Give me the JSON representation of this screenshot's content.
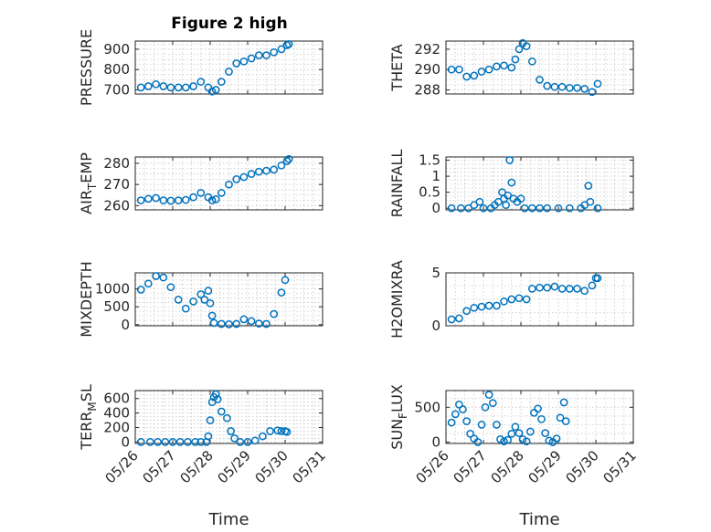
{
  "figure": {
    "title": "Figure 2 high"
  },
  "colors": {
    "marker": "#0072bd",
    "axis": "#262626",
    "grid": "#c6c6c6"
  },
  "chart_data": [
    {
      "id": "pressure",
      "type": "scatter",
      "ylabel": "PRESSURE",
      "xlim": [
        0,
        5
      ],
      "ylim": [
        680,
        940
      ],
      "yticks": [
        700,
        800,
        900
      ],
      "ytick_labels": [
        "700",
        "800",
        "900"
      ],
      "x_tick_dates": [
        "05/26",
        "05/27",
        "05/28",
        "05/29",
        "05/30",
        "05/31"
      ],
      "x_tick_labels_visible": false,
      "xlabel": "",
      "grid": true,
      "points": [
        [
          0.15,
          712
        ],
        [
          0.35,
          718
        ],
        [
          0.55,
          728
        ],
        [
          0.75,
          718
        ],
        [
          0.95,
          712
        ],
        [
          1.15,
          712
        ],
        [
          1.35,
          712
        ],
        [
          1.55,
          718
        ],
        [
          1.75,
          740
        ],
        [
          1.95,
          712
        ],
        [
          2.05,
          692
        ],
        [
          2.15,
          700
        ],
        [
          2.3,
          740
        ],
        [
          2.5,
          790
        ],
        [
          2.7,
          830
        ],
        [
          2.9,
          840
        ],
        [
          3.1,
          855
        ],
        [
          3.3,
          870
        ],
        [
          3.5,
          870
        ],
        [
          3.7,
          885
        ],
        [
          3.9,
          900
        ],
        [
          4.05,
          920
        ],
        [
          4.1,
          925
        ]
      ]
    },
    {
      "id": "theta",
      "type": "scatter",
      "ylabel": "THETA",
      "xlim": [
        0,
        5
      ],
      "ylim": [
        287.6,
        292.8
      ],
      "yticks": [
        288,
        290,
        292
      ],
      "ytick_labels": [
        "288",
        "290",
        "292"
      ],
      "x_tick_dates": [
        "05/26",
        "05/27",
        "05/28",
        "05/29",
        "05/30",
        "05/31"
      ],
      "x_tick_labels_visible": false,
      "xlabel": "",
      "grid": true,
      "points": [
        [
          0.15,
          290
        ],
        [
          0.35,
          290
        ],
        [
          0.55,
          289.3
        ],
        [
          0.75,
          289.4
        ],
        [
          0.95,
          289.8
        ],
        [
          1.15,
          290
        ],
        [
          1.35,
          290.3
        ],
        [
          1.55,
          290.4
        ],
        [
          1.75,
          290.2
        ],
        [
          1.85,
          291
        ],
        [
          1.95,
          292
        ],
        [
          2.05,
          292.6
        ],
        [
          2.15,
          292.3
        ],
        [
          2.3,
          290.8
        ],
        [
          2.5,
          289
        ],
        [
          2.7,
          288.4
        ],
        [
          2.9,
          288.3
        ],
        [
          3.1,
          288.3
        ],
        [
          3.3,
          288.2
        ],
        [
          3.5,
          288.2
        ],
        [
          3.7,
          288.1
        ],
        [
          3.9,
          287.8
        ],
        [
          4.05,
          288.6
        ]
      ]
    },
    {
      "id": "air_temp",
      "type": "scatter",
      "ylabel": "AIR_TEMP",
      "xlim": [
        0,
        5
      ],
      "ylim": [
        258,
        283
      ],
      "yticks": [
        260,
        270,
        280
      ],
      "ytick_labels": [
        "260",
        "270",
        "280"
      ],
      "x_tick_dates": [
        "05/26",
        "05/27",
        "05/28",
        "05/29",
        "05/30",
        "05/31"
      ],
      "x_tick_labels_visible": false,
      "xlabel": "",
      "grid": true,
      "points": [
        [
          0.15,
          262.5
        ],
        [
          0.35,
          263.2
        ],
        [
          0.55,
          263.6
        ],
        [
          0.75,
          262.5
        ],
        [
          0.95,
          262.3
        ],
        [
          1.15,
          262.5
        ],
        [
          1.35,
          262.7
        ],
        [
          1.55,
          264
        ],
        [
          1.75,
          266
        ],
        [
          1.95,
          264
        ],
        [
          2.05,
          262.5
        ],
        [
          2.15,
          263
        ],
        [
          2.3,
          266
        ],
        [
          2.5,
          270
        ],
        [
          2.7,
          272.5
        ],
        [
          2.9,
          273.5
        ],
        [
          3.1,
          275
        ],
        [
          3.3,
          276
        ],
        [
          3.5,
          276.5
        ],
        [
          3.7,
          277
        ],
        [
          3.9,
          279
        ],
        [
          4.05,
          281
        ],
        [
          4.1,
          282
        ]
      ]
    },
    {
      "id": "rainfall",
      "type": "scatter",
      "ylabel": "RAINFALL",
      "xlim": [
        0,
        5
      ],
      "ylim": [
        -0.05,
        1.6
      ],
      "yticks": [
        0,
        0.5,
        1,
        1.5
      ],
      "ytick_labels": [
        "0",
        "0.5",
        "1",
        "1.5"
      ],
      "x_tick_dates": [
        "05/26",
        "05/27",
        "05/28",
        "05/29",
        "05/30",
        "05/31"
      ],
      "x_tick_labels_visible": false,
      "xlabel": "",
      "grid": true,
      "points": [
        [
          0.15,
          0
        ],
        [
          0.4,
          0
        ],
        [
          0.6,
          0
        ],
        [
          0.75,
          0.1
        ],
        [
          0.9,
          0.2
        ],
        [
          1.0,
          0
        ],
        [
          1.2,
          0
        ],
        [
          1.3,
          0.1
        ],
        [
          1.4,
          0.2
        ],
        [
          1.5,
          0.5
        ],
        [
          1.55,
          0.3
        ],
        [
          1.6,
          0.1
        ],
        [
          1.65,
          0.4
        ],
        [
          1.7,
          1.5
        ],
        [
          1.75,
          0.8
        ],
        [
          1.8,
          0.3
        ],
        [
          1.9,
          0.2
        ],
        [
          2.0,
          0.3
        ],
        [
          2.1,
          0
        ],
        [
          2.3,
          0
        ],
        [
          2.5,
          0
        ],
        [
          2.7,
          0
        ],
        [
          3.0,
          0
        ],
        [
          3.3,
          0
        ],
        [
          3.6,
          0
        ],
        [
          3.7,
          0.1
        ],
        [
          3.8,
          0.7
        ],
        [
          3.85,
          0.2
        ],
        [
          4.05,
          0
        ]
      ]
    },
    {
      "id": "mixdepth",
      "type": "scatter",
      "ylabel": "MIXDEPTH",
      "xlim": [
        0,
        5
      ],
      "ylim": [
        -30,
        1450
      ],
      "yticks": [
        0,
        500,
        1000
      ],
      "ytick_labels": [
        "0",
        "500",
        "1000"
      ],
      "x_tick_dates": [
        "05/26",
        "05/27",
        "05/28",
        "05/29",
        "05/30",
        "05/31"
      ],
      "x_tick_labels_visible": false,
      "xlabel": "",
      "grid": true,
      "points": [
        [
          0.15,
          980
        ],
        [
          0.35,
          1150
        ],
        [
          0.55,
          1360
        ],
        [
          0.75,
          1320
        ],
        [
          0.95,
          1050
        ],
        [
          1.15,
          700
        ],
        [
          1.35,
          450
        ],
        [
          1.55,
          650
        ],
        [
          1.75,
          850
        ],
        [
          1.85,
          700
        ],
        [
          1.95,
          950
        ],
        [
          2.0,
          600
        ],
        [
          2.05,
          250
        ],
        [
          2.1,
          50
        ],
        [
          2.3,
          20
        ],
        [
          2.5,
          10
        ],
        [
          2.7,
          20
        ],
        [
          2.9,
          150
        ],
        [
          3.1,
          100
        ],
        [
          3.3,
          30
        ],
        [
          3.5,
          20
        ],
        [
          3.7,
          300
        ],
        [
          3.9,
          900
        ],
        [
          4.0,
          1250
        ]
      ]
    },
    {
      "id": "h2omixra",
      "type": "scatter",
      "ylabel": "H2OMIXRA",
      "xlim": [
        0,
        5
      ],
      "ylim": [
        0,
        5
      ],
      "yticks": [
        0,
        5
      ],
      "ytick_labels": [
        "0",
        "5"
      ],
      "x_tick_dates": [
        "05/26",
        "05/27",
        "05/28",
        "05/29",
        "05/30",
        "05/31"
      ],
      "x_tick_labels_visible": false,
      "xlabel": "",
      "grid": true,
      "points": [
        [
          0.15,
          0.6
        ],
        [
          0.35,
          0.7
        ],
        [
          0.55,
          1.4
        ],
        [
          0.75,
          1.7
        ],
        [
          0.95,
          1.8
        ],
        [
          1.15,
          1.9
        ],
        [
          1.35,
          1.9
        ],
        [
          1.55,
          2.3
        ],
        [
          1.75,
          2.5
        ],
        [
          1.95,
          2.6
        ],
        [
          2.15,
          2.5
        ],
        [
          2.3,
          3.5
        ],
        [
          2.5,
          3.6
        ],
        [
          2.7,
          3.6
        ],
        [
          2.9,
          3.7
        ],
        [
          3.1,
          3.5
        ],
        [
          3.3,
          3.5
        ],
        [
          3.5,
          3.5
        ],
        [
          3.7,
          3.3
        ],
        [
          3.9,
          3.8
        ],
        [
          4.0,
          4.5
        ],
        [
          4.05,
          4.5
        ]
      ]
    },
    {
      "id": "terr_msl",
      "type": "scatter",
      "ylabel": "TERR_MSL",
      "xlim": [
        0,
        5
      ],
      "ylim": [
        -20,
        710
      ],
      "yticks": [
        0,
        200,
        400,
        600
      ],
      "ytick_labels": [
        "0",
        "200",
        "400",
        "600"
      ],
      "x_tick_dates": [
        "05/26",
        "05/27",
        "05/28",
        "05/29",
        "05/30",
        "05/31"
      ],
      "x_tick_labels_visible": true,
      "xlabel": "Time",
      "grid": true,
      "points": [
        [
          0.15,
          0
        ],
        [
          0.4,
          0
        ],
        [
          0.6,
          0
        ],
        [
          0.8,
          0
        ],
        [
          1.0,
          0
        ],
        [
          1.2,
          0
        ],
        [
          1.4,
          0
        ],
        [
          1.6,
          0
        ],
        [
          1.75,
          0
        ],
        [
          1.9,
          0
        ],
        [
          1.95,
          80
        ],
        [
          2.0,
          300
        ],
        [
          2.05,
          550
        ],
        [
          2.1,
          620
        ],
        [
          2.15,
          660
        ],
        [
          2.2,
          590
        ],
        [
          2.3,
          420
        ],
        [
          2.45,
          330
        ],
        [
          2.55,
          150
        ],
        [
          2.65,
          50
        ],
        [
          2.8,
          0
        ],
        [
          3.0,
          0
        ],
        [
          3.2,
          20
        ],
        [
          3.4,
          80
        ],
        [
          3.6,
          150
        ],
        [
          3.8,
          160
        ],
        [
          3.9,
          150
        ],
        [
          4.0,
          150
        ],
        [
          4.05,
          140
        ]
      ]
    },
    {
      "id": "sun_flux",
      "type": "scatter",
      "ylabel": "SUN_FLUX",
      "xlim": [
        0,
        5
      ],
      "ylim": [
        -20,
        740
      ],
      "yticks": [
        0,
        500
      ],
      "ytick_labels": [
        "0",
        "500"
      ],
      "x_tick_dates": [
        "05/26",
        "05/27",
        "05/28",
        "05/29",
        "05/30",
        "05/31"
      ],
      "x_tick_labels_visible": true,
      "xlabel": "Time",
      "grid": true,
      "points": [
        [
          0.15,
          280
        ],
        [
          0.25,
          400
        ],
        [
          0.35,
          540
        ],
        [
          0.45,
          470
        ],
        [
          0.55,
          300
        ],
        [
          0.65,
          120
        ],
        [
          0.75,
          50
        ],
        [
          0.85,
          0
        ],
        [
          0.95,
          250
        ],
        [
          1.05,
          500
        ],
        [
          1.15,
          680
        ],
        [
          1.25,
          560
        ],
        [
          1.35,
          250
        ],
        [
          1.45,
          40
        ],
        [
          1.55,
          10
        ],
        [
          1.65,
          30
        ],
        [
          1.75,
          120
        ],
        [
          1.85,
          220
        ],
        [
          1.95,
          130
        ],
        [
          2.05,
          40
        ],
        [
          2.15,
          10
        ],
        [
          2.25,
          150
        ],
        [
          2.35,
          420
        ],
        [
          2.45,
          480
        ],
        [
          2.55,
          330
        ],
        [
          2.65,
          130
        ],
        [
          2.75,
          20
        ],
        [
          2.85,
          0
        ],
        [
          2.95,
          50
        ],
        [
          3.05,
          350
        ],
        [
          3.15,
          570
        ],
        [
          3.2,
          300
        ]
      ]
    }
  ]
}
